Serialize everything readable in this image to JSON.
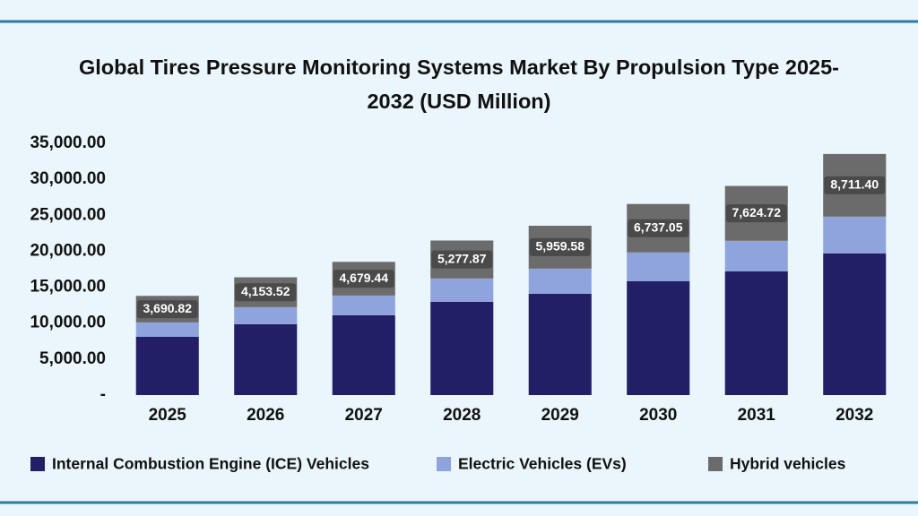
{
  "chart_data": {
    "type": "stacked_bar",
    "title": "Global Tires Pressure Monitoring Systems Market By Propulsion Type 2025-2032 (USD Million)",
    "categories": [
      "2025",
      "2026",
      "2027",
      "2028",
      "2029",
      "2030",
      "2031",
      "2032"
    ],
    "series": [
      {
        "name": "Internal Combustion Engine (ICE) Vehicles",
        "color": "#221f66",
        "values": [
          8100,
          9850,
          11100,
          12970,
          14090,
          15840,
          17210,
          19700
        ]
      },
      {
        "name": "Electric Vehicles (EVs)",
        "color": "#8fa3dc",
        "values": [
          2000,
          2370,
          2740,
          3240,
          3490,
          3990,
          4240,
          5110
        ]
      },
      {
        "name": "Hybrid vehicles",
        "color": "#6b6b6b",
        "values": [
          3690.82,
          4153.52,
          4679.44,
          5277.87,
          5959.58,
          6737.05,
          7624.72,
          8711.4
        ],
        "value_labels": [
          "3,690.82",
          "4,153.52",
          "4,679.44",
          "5,277.87",
          "5,959.58",
          "6,737.05",
          "7,624.72",
          "8,711.40"
        ]
      }
    ],
    "ylim": [
      0,
      35000
    ],
    "yticks": [
      {
        "value": 0,
        "label": "-"
      },
      {
        "value": 5000,
        "label": "5,000.00"
      },
      {
        "value": 10000,
        "label": "10,000.00"
      },
      {
        "value": 15000,
        "label": "15,000.00"
      },
      {
        "value": 20000,
        "label": "20,000.00"
      },
      {
        "value": 25000,
        "label": "25,000.00"
      },
      {
        "value": 30000,
        "label": "30,000.00"
      },
      {
        "value": 35000,
        "label": "35,000.00"
      }
    ],
    "grid": false,
    "legend": "bottom"
  }
}
